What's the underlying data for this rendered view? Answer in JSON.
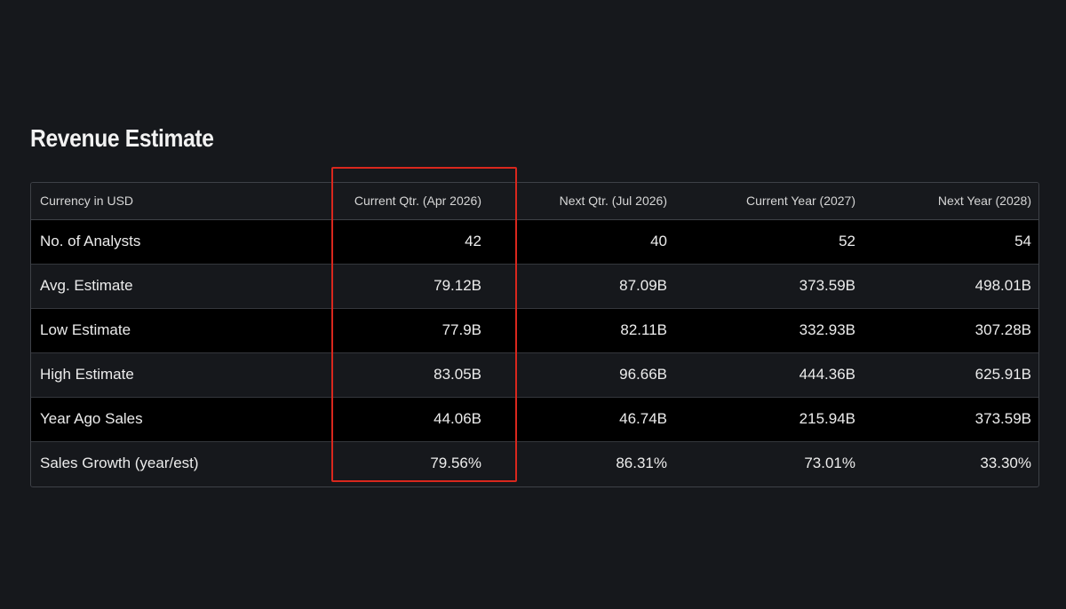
{
  "section": {
    "title": "Revenue Estimate"
  },
  "table": {
    "headers": [
      "Currency in USD",
      "Current Qtr. (Apr 2026)",
      "Next Qtr. (Jul 2026)",
      "Current Year (2027)",
      "Next Year (2028)"
    ],
    "rows": [
      {
        "label": "No. of Analysts",
        "values": [
          "42",
          "40",
          "52",
          "54"
        ]
      },
      {
        "label": "Avg. Estimate",
        "values": [
          "79.12B",
          "87.09B",
          "373.59B",
          "498.01B"
        ]
      },
      {
        "label": "Low Estimate",
        "values": [
          "77.9B",
          "82.11B",
          "332.93B",
          "307.28B"
        ]
      },
      {
        "label": "High Estimate",
        "values": [
          "83.05B",
          "96.66B",
          "444.36B",
          "625.91B"
        ]
      },
      {
        "label": "Year Ago Sales",
        "values": [
          "44.06B",
          "46.74B",
          "215.94B",
          "373.59B"
        ]
      },
      {
        "label": "Sales Growth (year/est)",
        "values": [
          "79.56%",
          "86.31%",
          "73.01%",
          "33.30%"
        ]
      }
    ]
  },
  "annotation": {
    "highlight_color": "#d9271d",
    "highlighted_column": "Current Qtr. (Apr 2026)"
  },
  "colors": {
    "background": "#16181c",
    "row_dark": "#000000",
    "border": "#3e4147",
    "text": "#ececec"
  }
}
